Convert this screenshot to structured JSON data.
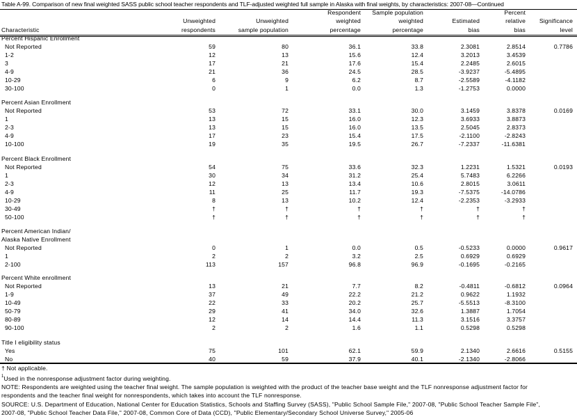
{
  "title": "Table A-99. Comparison of new final weighted SASS public school teacher respondents and TLF-adjusted weighted full sample in Alaska with final weights, by characteristics: 2007-08—Continued",
  "columns": [
    {
      "label": [
        "Characteristic"
      ]
    },
    {
      "label": [
        "Unweighted",
        "respondents"
      ]
    },
    {
      "label": [
        "Unweighted",
        "sample population"
      ]
    },
    {
      "label": [
        "Respondent",
        "weighted",
        "percentage"
      ]
    },
    {
      "label": [
        "Sample population",
        "weighted",
        "percentage"
      ]
    },
    {
      "label": [
        "Estimated",
        "bias"
      ]
    },
    {
      "label": [
        "Percent",
        "relative",
        "bias"
      ]
    },
    {
      "label": [
        "Significance",
        "level"
      ]
    }
  ],
  "sections": [
    {
      "label": [
        "Percent Hispanic Enrollment"
      ],
      "rows": [
        [
          "Not Reported",
          "59",
          "80",
          "36.1",
          "33.8",
          "2.3081",
          "2.8514",
          "0.7786"
        ],
        [
          "1-2",
          "12",
          "13",
          "15.6",
          "12.4",
          "3.2013",
          "3.4539",
          ""
        ],
        [
          "3",
          "17",
          "21",
          "17.6",
          "15.4",
          "2.2485",
          "2.6015",
          ""
        ],
        [
          "4-9",
          "21",
          "36",
          "24.5",
          "28.5",
          "-3.9237",
          "-5.4895",
          ""
        ],
        [
          "10-29",
          "6",
          "9",
          "6.2",
          "8.7",
          "-2.5589",
          "-4.1182",
          ""
        ],
        [
          "30-100",
          "0",
          "1",
          "0.0",
          "1.3",
          "-1.2753",
          "0.0000",
          ""
        ]
      ]
    },
    {
      "label": [
        "Percent Asian Enrollment"
      ],
      "rows": [
        [
          "Not Reported",
          "53",
          "72",
          "33.1",
          "30.0",
          "3.1459",
          "3.8378",
          "0.0169"
        ],
        [
          "1",
          "13",
          "15",
          "16.0",
          "12.3",
          "3.6933",
          "3.8873",
          ""
        ],
        [
          "2-3",
          "13",
          "15",
          "16.0",
          "13.5",
          "2.5045",
          "2.8373",
          ""
        ],
        [
          "4-9",
          "17",
          "23",
          "15.4",
          "17.5",
          "-2.1100",
          "-2.8243",
          ""
        ],
        [
          "10-100",
          "19",
          "35",
          "19.5",
          "26.7",
          "-7.2337",
          "-11.6381",
          ""
        ]
      ]
    },
    {
      "label": [
        "Percent Black Enrollment"
      ],
      "rows": [
        [
          "Not Reported",
          "54",
          "75",
          "33.6",
          "32.3",
          "1.2231",
          "1.5321",
          "0.0193"
        ],
        [
          "1",
          "30",
          "34",
          "31.2",
          "25.4",
          "5.7483",
          "6.2266",
          ""
        ],
        [
          "2-3",
          "12",
          "13",
          "13.4",
          "10.6",
          "2.8015",
          "3.0611",
          ""
        ],
        [
          "4-9",
          "11",
          "25",
          "11.7",
          "19.3",
          "-7.5375",
          "-14.0786",
          ""
        ],
        [
          "10-29",
          "8",
          "13",
          "10.2",
          "12.4",
          "-2.2353",
          "-3.2933",
          ""
        ],
        [
          "30-49",
          "†",
          "†",
          "†",
          "†",
          "†",
          "†",
          ""
        ],
        [
          "50-100",
          "†",
          "†",
          "†",
          "†",
          "†",
          "†",
          ""
        ]
      ]
    },
    {
      "label": [
        "Percent American Indian/",
        "Alaska Native Enrollment"
      ],
      "rows": [
        [
          "Not Reported",
          "0",
          "1",
          "0.0",
          "0.5",
          "-0.5233",
          "0.0000",
          "0.9617"
        ],
        [
          "1",
          "2",
          "2",
          "3.2",
          "2.5",
          "0.6929",
          "0.6929",
          ""
        ],
        [
          "2-100",
          "113",
          "157",
          "96.8",
          "96.9",
          "-0.1695",
          "-0.2165",
          ""
        ]
      ]
    },
    {
      "label": [
        "Percent White enrollment"
      ],
      "rows": [
        [
          "Not Reported",
          "13",
          "21",
          "7.7",
          "8.2",
          "-0.4811",
          "-0.6812",
          "0.0964"
        ],
        [
          "1-9",
          "37",
          "49",
          "22.2",
          "21.2",
          "0.9622",
          "1.1932",
          ""
        ],
        [
          "10-49",
          "22",
          "33",
          "20.2",
          "25.7",
          "-5.5513",
          "-8.3100",
          ""
        ],
        [
          "50-79",
          "29",
          "41",
          "34.0",
          "32.6",
          "1.3887",
          "1.7054",
          ""
        ],
        [
          "80-89",
          "12",
          "14",
          "14.4",
          "11.3",
          "3.1516",
          "3.3757",
          ""
        ],
        [
          "90-100",
          "2",
          "2",
          "1.6",
          "1.1",
          "0.5298",
          "0.5298",
          ""
        ]
      ]
    },
    {
      "label": [
        "Title I eligibility status"
      ],
      "rows": [
        [
          "Yes",
          "75",
          "101",
          "62.1",
          "59.9",
          "2.1340",
          "2.6616",
          "0.5155"
        ],
        [
          "No",
          "40",
          "59",
          "37.9",
          "40.1",
          "-2.1340",
          "-2.8066",
          ""
        ]
      ]
    }
  ],
  "footnotes": {
    "dagger": "† Not applicable.",
    "note1_marker": "1",
    "note1": "Used in the nonresponse adjustment factor during weighting.",
    "note_line1": "NOTE: Respondents are weighted using the teacher final weight. The sample population is weighted with the product of the teacher base weight and the TLF nonresponse adjustment factor for",
    "note_line2": "respondents and the teacher final weight for nonrespondents, which takes into account the TLF nonresponse.",
    "source_line1": "SOURCE: U.S. Department of Education, National Center for Education Statistics, Schools and Staffing Survey (SASS), \"Public School Sample File,\" 2007-08, \"Public School Teacher Sample File\",",
    "source_line2": "2007-08, \"Public School Teacher Data File,\" 2007-08, Common Core of Data (CCD), \"Public Elementary/Secondary School Universe Survey,\" 2005-06"
  }
}
